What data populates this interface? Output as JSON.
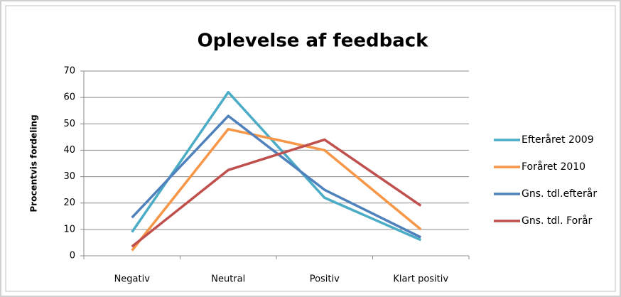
{
  "chart_data": {
    "type": "line",
    "title": "Oplevelse af feedback",
    "y_label": "Procentvis fordeling",
    "categories": [
      "Negativ",
      "Neutral",
      "Positiv",
      "Klart positiv"
    ],
    "series": [
      {
        "name": "Efteråret 2009",
        "color": "#4bacc6",
        "values": [
          9,
          62,
          22,
          6
        ]
      },
      {
        "name": "Foråret 2010",
        "color": "#f79646",
        "values": [
          2,
          48,
          40,
          10
        ]
      },
      {
        "name": "Gns. tdl.efterår",
        "color": "#4f81bd",
        "values": [
          14.5,
          53,
          25,
          7
        ]
      },
      {
        "name": "Gns. tdl. Forår",
        "color": "#c0504d",
        "values": [
          3.5,
          32.5,
          44,
          19
        ]
      }
    ],
    "ylim": [
      0,
      70
    ],
    "yticks": [
      0,
      10,
      20,
      30,
      40,
      50,
      60,
      70
    ],
    "grid": true,
    "legend": "right"
  }
}
